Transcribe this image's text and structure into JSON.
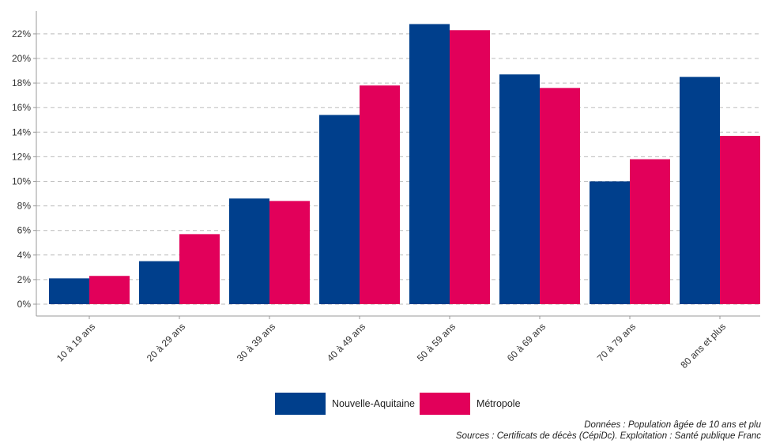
{
  "chart_data": {
    "type": "bar",
    "categories": [
      "10 à 19 ans",
      "20 à 29 ans",
      "30 à 39 ans",
      "40 à 49 ans",
      "50 à 59 ans",
      "60 à 69 ans",
      "70 à 79 ans",
      "80 ans et plus"
    ],
    "series": [
      {
        "name": "Nouvelle-Aquitaine",
        "color": "#003F8C",
        "values": [
          2.1,
          3.5,
          8.6,
          15.4,
          22.8,
          18.7,
          10.0,
          18.5
        ]
      },
      {
        "name": "Métropole",
        "color": "#E2005A",
        "values": [
          2.3,
          5.7,
          8.4,
          17.8,
          22.3,
          17.6,
          11.8,
          13.7
        ]
      }
    ],
    "ylim": [
      0,
      23.5
    ],
    "yticks": [
      0,
      2,
      4,
      6,
      8,
      10,
      12,
      14,
      16,
      18,
      20,
      22
    ],
    "ytick_labels": [
      "0%",
      "2%",
      "4%",
      "6%",
      "8%",
      "10%",
      "12%",
      "14%",
      "16%",
      "18%",
      "20%",
      "22%"
    ],
    "grid": true,
    "legend_position": "bottom"
  },
  "legend": {
    "item1_label": "Nouvelle-Aquitaine",
    "item2_label": "Métropole"
  },
  "source": {
    "line1": "Données : Population âgée de 10 ans et plu",
    "line2": "Sources : Certificats de décès (CépiDc). Exploitation : Santé publique Franc"
  },
  "colors": {
    "nouvelle_aquitaine": "#003F8C",
    "metropole": "#E2005A",
    "grid": "#BBBBBB"
  }
}
